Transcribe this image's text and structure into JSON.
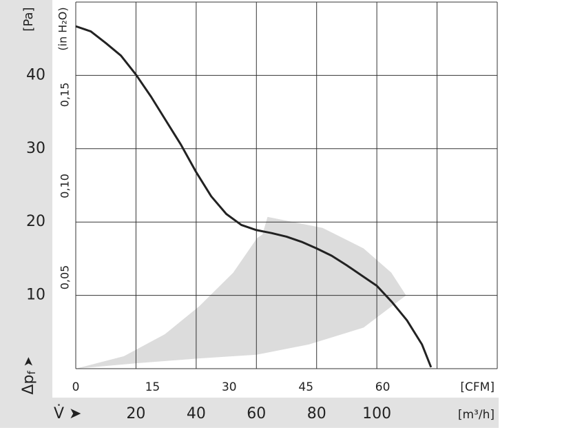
{
  "chart_data": {
    "type": "line",
    "y_label": "[Pa]",
    "y2_label": "(in H₂O)",
    "y_symbol": [
      "Δp",
      "f",
      " ➤"
    ],
    "x_symbol": "V̇ ➤",
    "x_label": "[m³/h]",
    "x2_label": "[CFM]",
    "xlim": [
      0,
      140
    ],
    "xticks": [
      20,
      40,
      60,
      80,
      100
    ],
    "xgrid": [
      0,
      20,
      40,
      60,
      80,
      100,
      120,
      140
    ],
    "x2lim": [
      0,
      82.4
    ],
    "x2ticks": [
      0,
      15,
      30,
      45,
      60
    ],
    "ylim": [
      0,
      50
    ],
    "yticks": [
      10,
      20,
      30,
      40
    ],
    "ygrid": [
      0,
      10,
      20,
      30,
      40,
      50
    ],
    "y2lim": [
      0,
      0.2007
    ],
    "y2ticks": [
      {
        "value": 0.05,
        "label": "0,05"
      },
      {
        "value": 0.1,
        "label": "0,10"
      },
      {
        "value": 0.15,
        "label": "0,15"
      }
    ],
    "grid": true,
    "series": [
      {
        "color": "#222222",
        "x": [
          0,
          5,
          10,
          15,
          20,
          25,
          30,
          35,
          40,
          45,
          50,
          55,
          60,
          65,
          70,
          75,
          80,
          85,
          90,
          95,
          100,
          105,
          110,
          115,
          118
        ],
        "values": [
          46.7,
          46.0,
          44.4,
          42.7,
          40.1,
          37.1,
          33.8,
          30.5,
          26.8,
          23.5,
          21.1,
          19.6,
          18.9,
          18.5,
          18.0,
          17.3,
          16.4,
          15.4,
          14.1,
          12.7,
          11.3,
          9.1,
          6.6,
          3.3,
          0.2
        ]
      }
    ],
    "region": {
      "color": "#dcdcdc",
      "x": [
        0,
        20.5,
        41,
        60,
        77.4,
        95.6,
        109.7,
        104.8,
        95.6,
        82,
        63.7,
        62,
        60.2,
        52.3,
        41,
        29.6,
        16
      ],
      "values": [
        0,
        0.75,
        1.4,
        1.9,
        3.3,
        5.6,
        10,
        13.1,
        16.4,
        19.2,
        20.7,
        18.3,
        17.8,
        13.1,
        8.5,
        4.7,
        1.7
      ]
    }
  }
}
